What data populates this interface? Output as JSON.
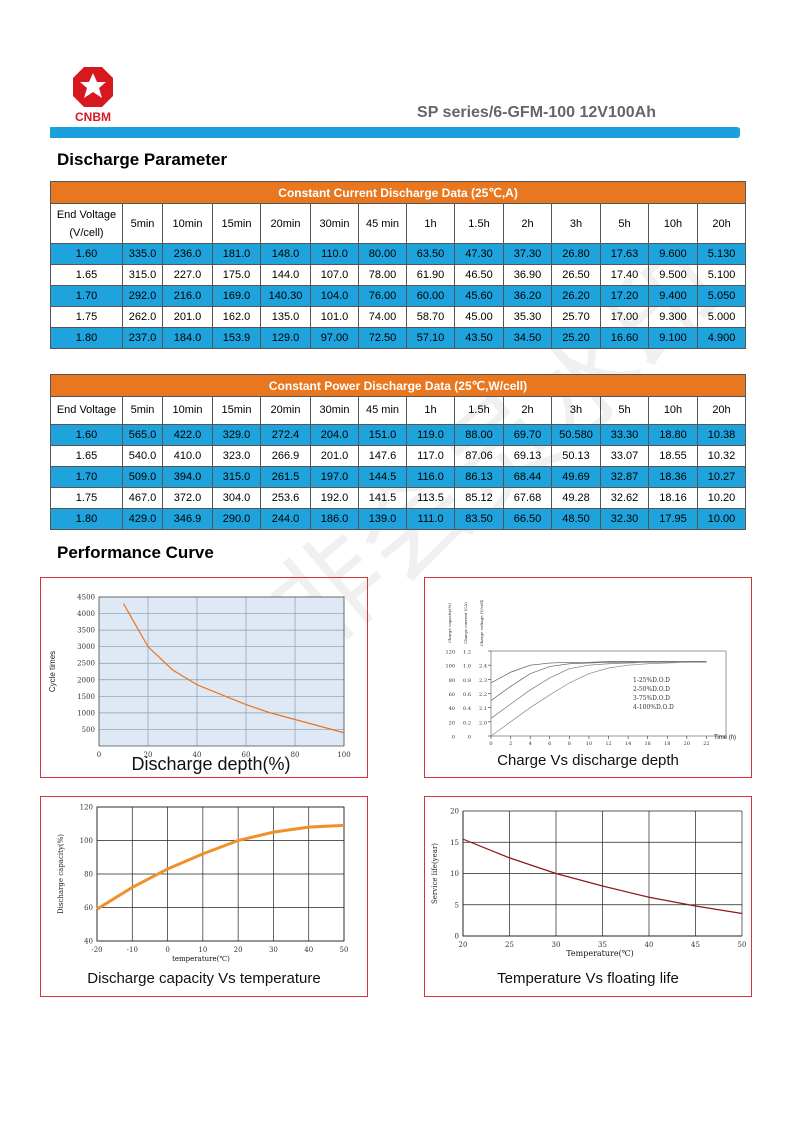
{
  "header": {
    "logo": "CNBM",
    "model": "SP series/6-GFM-100 12V100Ah"
  },
  "watermark": "非会员水印",
  "sections": [
    "Discharge Parameter",
    "Performance Curve"
  ],
  "tables": [
    {
      "title": "Constant Current Discharge Data (25℃,A)",
      "header": [
        "End Voltage (V/cell)",
        "5min",
        "10min",
        "15min",
        "20min",
        "30min",
        "45 min",
        "1h",
        "1.5h",
        "2h",
        "3h",
        "5h",
        "10h",
        "20h"
      ],
      "rows": [
        [
          "1.60",
          "335.0",
          "236.0",
          "181.0",
          "148.0",
          "110.0",
          "80.00",
          "63.50",
          "47.30",
          "37.30",
          "26.80",
          "17.63",
          "9.600",
          "5.130"
        ],
        [
          "1.65",
          "315.0",
          "227.0",
          "175.0",
          "144.0",
          "107.0",
          "78.00",
          "61.90",
          "46.50",
          "36.90",
          "26.50",
          "17.40",
          "9.500",
          "5.100"
        ],
        [
          "1.70",
          "292.0",
          "216.0",
          "169.0",
          "140.30",
          "104.0",
          "76.00",
          "60.00",
          "45.60",
          "36.20",
          "26.20",
          "17.20",
          "9.400",
          "5.050"
        ],
        [
          "1.75",
          "262.0",
          "201.0",
          "162.0",
          "135.0",
          "101.0",
          "74.00",
          "58.70",
          "45.00",
          "35.30",
          "25.70",
          "17.00",
          "9.300",
          "5.000"
        ],
        [
          "1.80",
          "237.0",
          "184.0",
          "153.9",
          "129.0",
          "97.00",
          "72.50",
          "57.10",
          "43.50",
          "34.50",
          "25.20",
          "16.60",
          "9.100",
          "4.900"
        ]
      ]
    },
    {
      "title": "Constant Power Discharge Data (25℃,W/cell)",
      "header": [
        "End Voltage",
        "5min",
        "10min",
        "15min",
        "20min",
        "30min",
        "45 min",
        "1h",
        "1.5h",
        "2h",
        "3h",
        "5h",
        "10h",
        "20h"
      ],
      "rows": [
        [
          "1.60",
          "565.0",
          "422.0",
          "329.0",
          "272.4",
          "204.0",
          "151.0",
          "119.0",
          "88.00",
          "69.70",
          "50.580",
          "33.30",
          "18.80",
          "10.38"
        ],
        [
          "1.65",
          "540.0",
          "410.0",
          "323.0",
          "266.9",
          "201.0",
          "147.6",
          "117.0",
          "87.06",
          "69.13",
          "50.13",
          "33.07",
          "18.55",
          "10.32"
        ],
        [
          "1.70",
          "509.0",
          "394.0",
          "315.0",
          "261.5",
          "197.0",
          "144.5",
          "116.0",
          "86.13",
          "68.44",
          "49.69",
          "32.87",
          "18.36",
          "10.27"
        ],
        [
          "1.75",
          "467.0",
          "372.0",
          "304.0",
          "253.6",
          "192.0",
          "141.5",
          "113.5",
          "85.12",
          "67.68",
          "49.28",
          "32.62",
          "18.16",
          "10.20"
        ],
        [
          "1.80",
          "429.0",
          "346.9",
          "290.0",
          "244.0",
          "186.0",
          "139.0",
          "111.0",
          "83.50",
          "66.50",
          "48.50",
          "32.30",
          "17.95",
          "10.00"
        ]
      ]
    }
  ],
  "charts": [
    {
      "type": "line",
      "xlabel": "Discharge depth(%)",
      "ylabel": "Cycle times",
      "grid": true,
      "color": "#e8741e",
      "x": [
        10,
        20,
        30,
        40,
        50,
        60,
        70,
        80,
        90,
        100
      ],
      "series": [
        {
          "values": [
            4300,
            3000,
            2300,
            1850,
            1550,
            1250,
            1000,
            800,
            600,
            400
          ]
        }
      ],
      "xlim": [
        0,
        100
      ],
      "xticks": [
        0,
        20,
        40,
        60,
        80,
        100
      ],
      "ylim": [
        0,
        4500
      ],
      "yticks": [
        500,
        1000,
        1500,
        2000,
        2500,
        3000,
        3500,
        4000,
        4500
      ]
    },
    {
      "type": "line",
      "title": "Charge Vs discharge depth",
      "xlabel": "Time (h)",
      "ylabel": "Charge capacity(%)",
      "y2label": "Charge current (CA)",
      "y3label": "Charge voltage (V/cell)",
      "grid": false,
      "x": [
        0,
        2,
        4,
        6,
        8,
        10,
        12,
        14,
        16,
        18,
        20,
        22
      ],
      "series": [
        {
          "name": "1-25%D.O.D",
          "color": "#555555",
          "values": [
            75,
            90,
            100,
            103,
            104,
            104,
            105,
            105,
            105,
            105,
            105,
            105
          ]
        },
        {
          "name": "2-50%D.O.D",
          "color": "#666666",
          "values": [
            50,
            70,
            88,
            98,
            102,
            103,
            104,
            104,
            105,
            105,
            105,
            105
          ]
        },
        {
          "name": "3-75%D.O.D",
          "color": "#777777",
          "values": [
            25,
            45,
            65,
            82,
            95,
            100,
            102,
            103,
            104,
            104,
            105,
            105
          ]
        },
        {
          "name": "4-100%D.O.D",
          "color": "#888888",
          "values": [
            0,
            20,
            40,
            58,
            75,
            88,
            96,
            100,
            102,
            103,
            104,
            104
          ]
        }
      ],
      "xlim": [
        0,
        24
      ],
      "xticks": [
        0,
        2,
        4,
        6,
        8,
        10,
        12,
        14,
        16,
        18,
        20,
        22
      ],
      "ylim": [
        0,
        120
      ],
      "yticks": [
        0,
        20,
        40,
        60,
        80,
        100,
        120
      ],
      "y2lim": [
        0,
        1.2
      ],
      "y2ticks": [
        0,
        0.2,
        0.4,
        0.6,
        0.8,
        {
          "value": 1,
          "label": "1.0"
        },
        1.2
      ],
      "y3lim": [
        1.9,
        2.5
      ],
      "y3ticks": [
        {
          "value": 2,
          "label": "2.0"
        },
        2.1,
        2.2,
        2.3,
        2.4
      ]
    },
    {
      "type": "line",
      "title": "Discharge capacity Vs temperature",
      "xlabel": "temperature(℃)",
      "ylabel": "Discharge capacity(%)",
      "grid": true,
      "color": "#f0902a",
      "x": [
        -20,
        -10,
        0,
        10,
        20,
        30,
        40,
        50
      ],
      "series": [
        {
          "values": [
            59,
            72,
            83,
            92,
            100,
            105,
            108,
            109
          ]
        }
      ],
      "xlim": [
        -20,
        50
      ],
      "xticks": [
        -20,
        -10,
        0,
        10,
        20,
        30,
        40,
        50
      ],
      "ylim": [
        40,
        120
      ],
      "yticks": [
        40,
        60,
        80,
        100,
        120
      ]
    },
    {
      "type": "line",
      "title": "Temperature Vs floating life",
      "xlabel": "Temperature(℃)",
      "ylabel": "Service life(year)",
      "grid": true,
      "color": "#8b1a1a",
      "x": [
        20,
        25,
        30,
        35,
        40,
        45,
        50
      ],
      "series": [
        {
          "values": [
            15.5,
            12.5,
            10,
            8,
            6.2,
            4.8,
            3.6
          ]
        }
      ],
      "xlim": [
        20,
        50
      ],
      "xticks": [
        20,
        25,
        30,
        35,
        40,
        45,
        50
      ],
      "ylim": [
        0,
        20
      ],
      "yticks": [
        0,
        5,
        10,
        15,
        20
      ]
    }
  ]
}
